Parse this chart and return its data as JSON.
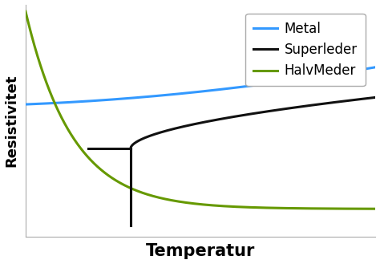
{
  "title": "",
  "xlabel": "Temperatur",
  "ylabel": "Resistivitet",
  "background_color": "#ffffff",
  "grid_color": "#d0d0d0",
  "legend_entries": [
    "Metal",
    "Superleder",
    "HalvMeder"
  ],
  "metal_color": "#3399ff",
  "superleder_color": "#111111",
  "halvmeder_color": "#669900",
  "xlabel_fontsize": 15,
  "ylabel_fontsize": 13,
  "legend_fontsize": 12,
  "line_width": 2.2,
  "tc": 0.3,
  "xlim": [
    0.0,
    1.0
  ],
  "ylim": [
    0.0,
    1.0
  ]
}
